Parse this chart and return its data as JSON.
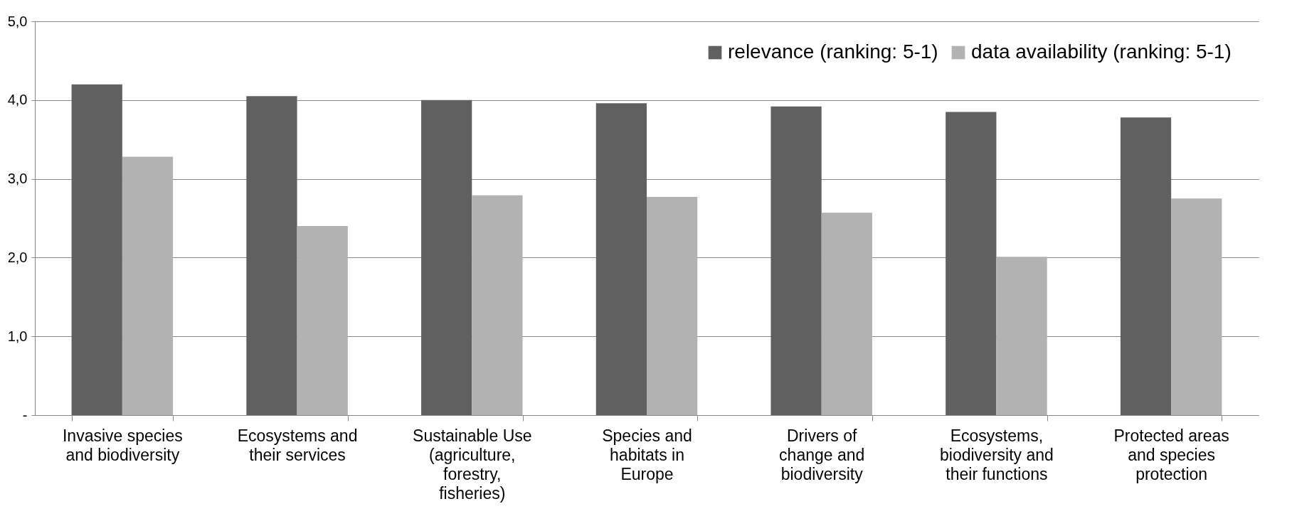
{
  "chart_data": {
    "type": "bar",
    "categories": [
      "Invasive species and biodiversity",
      "Ecosystems and their services",
      "Sustainable Use (agriculture, forestry, fisheries)",
      "Species and habitats in Europe",
      "Drivers of change and biodiversity",
      "Ecosystems, biodiversity and their functions",
      "Protected areas and species protection"
    ],
    "series": [
      {
        "name": "relevance (ranking: 5-1)",
        "color": "#606060",
        "values": [
          4.2,
          4.05,
          4.0,
          3.96,
          3.92,
          3.85,
          3.78
        ]
      },
      {
        "name": "data availability  (ranking: 5-1)",
        "color": "#b2b2b2",
        "values": [
          3.28,
          2.4,
          2.79,
          2.77,
          2.57,
          2.01,
          2.75
        ]
      }
    ],
    "ylim": [
      0,
      5
    ],
    "yticks": [
      {
        "value": 0,
        "label": "-"
      },
      {
        "value": 1,
        "label": "1,0"
      },
      {
        "value": 2,
        "label": "2,0"
      },
      {
        "value": 3,
        "label": "3,0"
      },
      {
        "value": 4,
        "label": "4,0"
      },
      {
        "value": 5,
        "label": "5,0"
      }
    ],
    "grid": "y",
    "legend": "top right"
  }
}
